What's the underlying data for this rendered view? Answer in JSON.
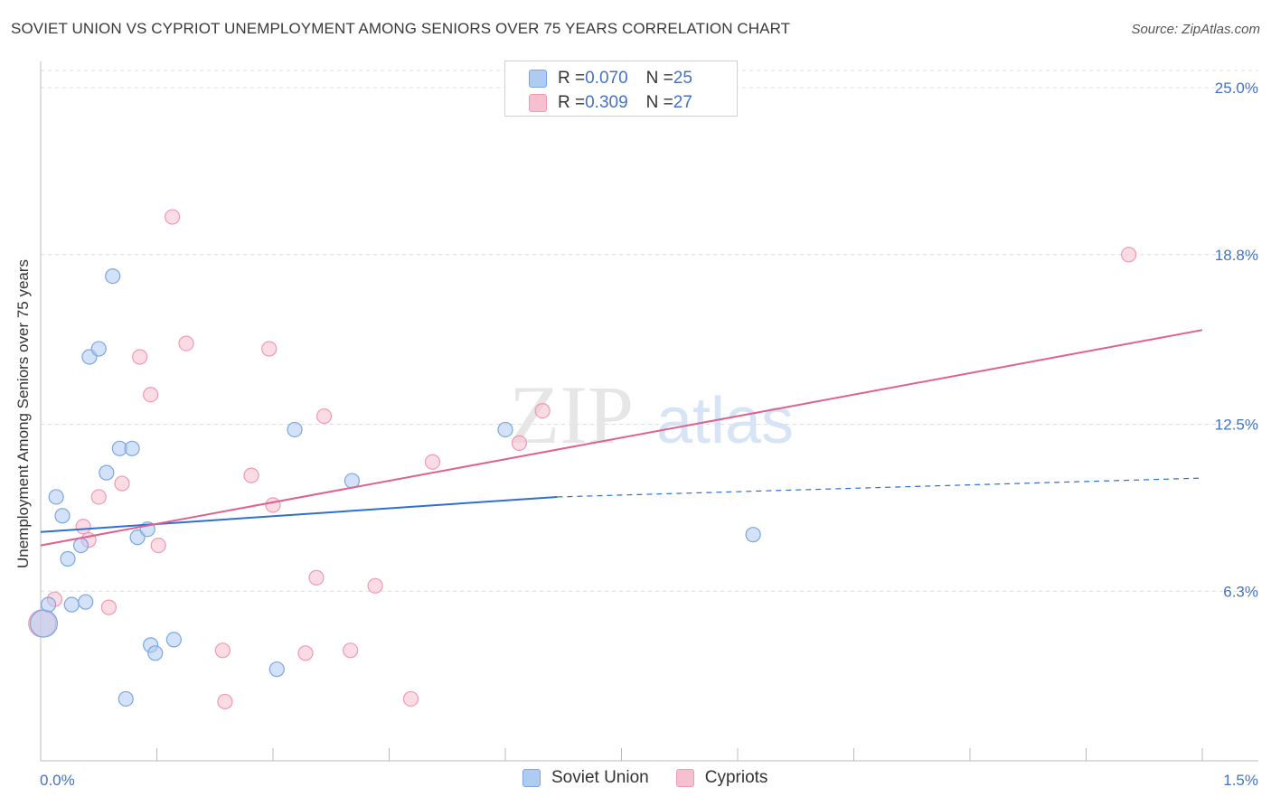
{
  "title": "SOVIET UNION VS CYPRIOT UNEMPLOYMENT AMONG SENIORS OVER 75 YEARS CORRELATION CHART",
  "source": "Source: ZipAtlas.com",
  "watermark": {
    "zip": "ZIP",
    "atlas": "atlas"
  },
  "legend": {
    "soviet": {
      "r_label": "R = ",
      "r_value": "0.070",
      "n_label": "N = ",
      "n_value": "25"
    },
    "cypriot": {
      "r_label": "R = ",
      "r_value": "0.309",
      "n_label": "N = ",
      "n_value": "27"
    }
  },
  "colors": {
    "soviet_fill": "#aecbf2",
    "soviet_stroke": "#7aa7e0",
    "soviet_line": "#2e6fd1",
    "cypriot_fill": "#f7c0d0",
    "cypriot_stroke": "#ee9ab3",
    "cypriot_line": "#e0608e",
    "axis_text": "#4472c4",
    "grid": "#dddddd"
  },
  "chart_data": {
    "type": "scatter",
    "title": "SOVIET UNION VS CYPRIOT UNEMPLOYMENT AMONG SENIORS OVER 75 YEARS CORRELATION CHART",
    "xlabel": "",
    "ylabel": "Unemployment Among Seniors over 75 years",
    "xlim": [
      0,
      1.5
    ],
    "ylim": [
      0,
      25
    ],
    "x_tick_labels": [
      "0.0%",
      "1.5%"
    ],
    "y_ticks": [
      6.3,
      12.5,
      18.8,
      25.0
    ],
    "y_tick_labels": [
      "6.3%",
      "12.5%",
      "18.8%",
      "25.0%"
    ],
    "series": [
      {
        "name": "Soviet Union",
        "points": [
          {
            "x": 0.004,
            "y": 5.1,
            "big": true
          },
          {
            "x": 0.01,
            "y": 5.8
          },
          {
            "x": 0.02,
            "y": 9.8
          },
          {
            "x": 0.028,
            "y": 9.1
          },
          {
            "x": 0.035,
            "y": 7.5
          },
          {
            "x": 0.04,
            "y": 5.8
          },
          {
            "x": 0.052,
            "y": 8.0
          },
          {
            "x": 0.058,
            "y": 5.9
          },
          {
            "x": 0.063,
            "y": 15.0
          },
          {
            "x": 0.075,
            "y": 15.3
          },
          {
            "x": 0.085,
            "y": 10.7
          },
          {
            "x": 0.093,
            "y": 18.0
          },
          {
            "x": 0.102,
            "y": 11.6
          },
          {
            "x": 0.11,
            "y": 2.3
          },
          {
            "x": 0.118,
            "y": 11.6
          },
          {
            "x": 0.125,
            "y": 8.3
          },
          {
            "x": 0.138,
            "y": 8.6
          },
          {
            "x": 0.142,
            "y": 4.3
          },
          {
            "x": 0.148,
            "y": 4.0
          },
          {
            "x": 0.172,
            "y": 4.5
          },
          {
            "x": 0.305,
            "y": 3.4
          },
          {
            "x": 0.328,
            "y": 12.3
          },
          {
            "x": 0.402,
            "y": 10.4
          },
          {
            "x": 0.6,
            "y": 12.3
          },
          {
            "x": 0.92,
            "y": 8.4
          }
        ],
        "trend": {
          "x0": 0.0,
          "y0": 8.5,
          "x1": 1.0,
          "y1": 9.8,
          "dash_to_x": 1.5,
          "dash_to_y": 10.5
        }
      },
      {
        "name": "Cypriots",
        "points": [
          {
            "x": 0.002,
            "y": 5.1,
            "big": true
          },
          {
            "x": 0.018,
            "y": 6.0
          },
          {
            "x": 0.055,
            "y": 8.7
          },
          {
            "x": 0.062,
            "y": 8.2
          },
          {
            "x": 0.075,
            "y": 9.8
          },
          {
            "x": 0.088,
            "y": 5.7
          },
          {
            "x": 0.105,
            "y": 10.3
          },
          {
            "x": 0.128,
            "y": 15.0
          },
          {
            "x": 0.142,
            "y": 13.6
          },
          {
            "x": 0.152,
            "y": 8.0
          },
          {
            "x": 0.17,
            "y": 20.2
          },
          {
            "x": 0.188,
            "y": 15.5
          },
          {
            "x": 0.235,
            "y": 4.1
          },
          {
            "x": 0.238,
            "y": 2.2
          },
          {
            "x": 0.272,
            "y": 10.6
          },
          {
            "x": 0.295,
            "y": 15.3
          },
          {
            "x": 0.3,
            "y": 9.5
          },
          {
            "x": 0.342,
            "y": 4.0
          },
          {
            "x": 0.356,
            "y": 6.8
          },
          {
            "x": 0.366,
            "y": 12.8
          },
          {
            "x": 0.4,
            "y": 4.1
          },
          {
            "x": 0.432,
            "y": 6.5
          },
          {
            "x": 0.478,
            "y": 2.3
          },
          {
            "x": 0.506,
            "y": 11.1
          },
          {
            "x": 0.618,
            "y": 11.8
          },
          {
            "x": 0.648,
            "y": 13.0
          },
          {
            "x": 1.405,
            "y": 18.8
          }
        ],
        "trend": {
          "x0": 0.0,
          "y0": 8.0,
          "x1": 1.5,
          "y1": 16.0
        }
      }
    ]
  }
}
